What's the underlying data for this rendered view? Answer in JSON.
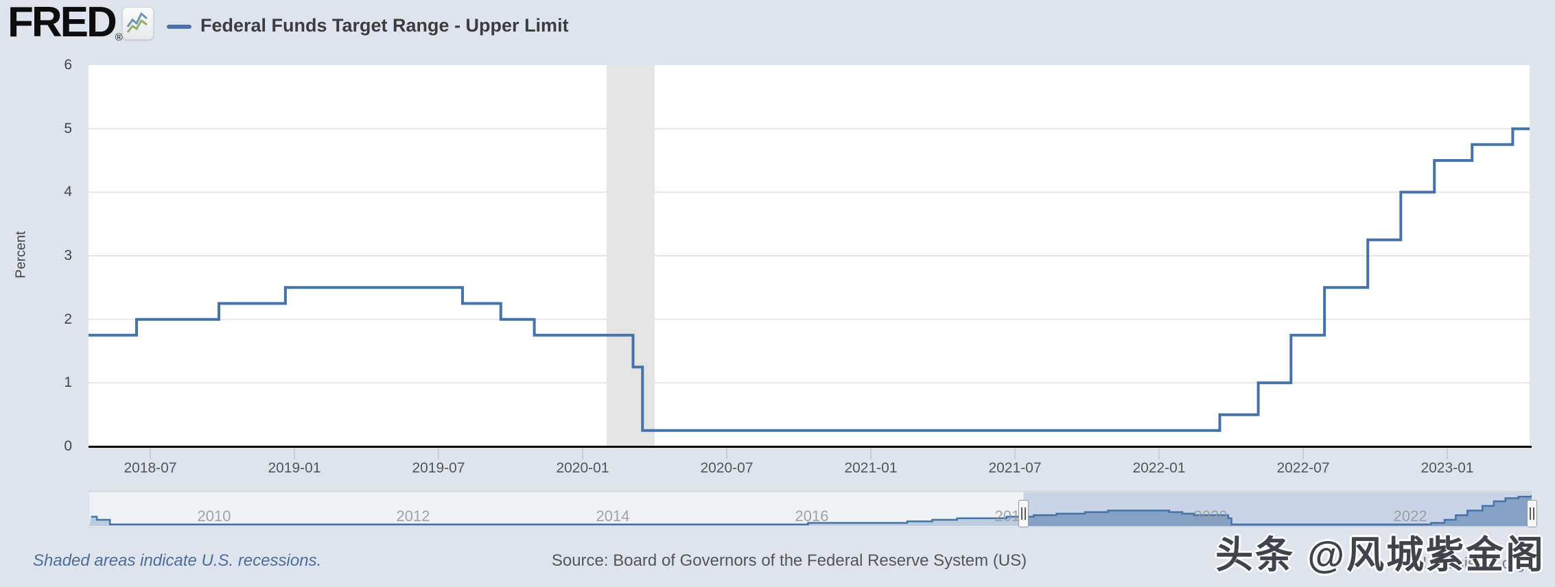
{
  "header": {
    "logo": "FRED",
    "registered": "®",
    "logo_icon": "fred-graph-icon",
    "legend_label": "Federal Funds Target Range - Upper Limit"
  },
  "chart_data": {
    "type": "line",
    "step": true,
    "title": "Federal Funds Target Range - Upper Limit",
    "ylabel": "Percent",
    "ylim": [
      0,
      6
    ],
    "yticks": [
      6,
      5,
      4,
      3,
      2,
      1,
      0
    ],
    "x_range": [
      "2018-04-14",
      "2023-04-14"
    ],
    "xticks": [
      "2018-07",
      "2019-01",
      "2019-07",
      "2020-01",
      "2020-07",
      "2021-01",
      "2021-07",
      "2022-01",
      "2022-07",
      "2023-01"
    ],
    "grid": "horizontal",
    "legend_position": "top-left",
    "series": [
      {
        "name": "Federal Funds Target Range - Upper Limit",
        "color": "#4572a7",
        "points": [
          [
            "2018-04-14",
            1.75
          ],
          [
            "2018-06-14",
            2.0
          ],
          [
            "2018-09-27",
            2.25
          ],
          [
            "2018-12-20",
            2.5
          ],
          [
            "2019-08-01",
            2.25
          ],
          [
            "2019-09-19",
            2.0
          ],
          [
            "2019-10-31",
            1.75
          ],
          [
            "2020-03-04",
            1.25
          ],
          [
            "2020-03-16",
            0.25
          ],
          [
            "2022-03-17",
            0.5
          ],
          [
            "2022-05-05",
            1.0
          ],
          [
            "2022-06-16",
            1.75
          ],
          [
            "2022-07-28",
            2.5
          ],
          [
            "2022-09-22",
            3.25
          ],
          [
            "2022-11-03",
            4.0
          ],
          [
            "2022-12-15",
            4.5
          ],
          [
            "2023-02-02",
            4.75
          ],
          [
            "2023-03-23",
            5.0
          ]
        ]
      }
    ],
    "recessions": [
      [
        "2020-02-01",
        "2020-04-01"
      ]
    ],
    "recession_color": "#e4e4e4",
    "gridline_color": "#e6e6e6"
  },
  "navigator": {
    "x_range": [
      "2008-10-01",
      "2023-03-20"
    ],
    "ylim": [
      0,
      5.45
    ],
    "xticks": [
      "2010",
      "2012",
      "2014",
      "2016",
      "2018",
      "2020",
      "2022"
    ],
    "selection": [
      "2018-02-15",
      "2023-03-20"
    ],
    "colors": {
      "outside_bg": "#eff2f5",
      "selection_bg": "#c9d4e9",
      "area_fill": "rgba(69,114,167,0.30)",
      "line": "#4572a7"
    },
    "points": [
      [
        "2008-10-08",
        1.5
      ],
      [
        "2008-10-29",
        1.0
      ],
      [
        "2008-12-16",
        0.25
      ],
      [
        "2015-12-17",
        0.5
      ],
      [
        "2016-12-15",
        0.75
      ],
      [
        "2017-03-16",
        1.0
      ],
      [
        "2017-06-15",
        1.25
      ],
      [
        "2017-12-14",
        1.5
      ],
      [
        "2018-03-22",
        1.75
      ],
      [
        "2018-06-14",
        2.0
      ],
      [
        "2018-09-27",
        2.25
      ],
      [
        "2018-12-20",
        2.5
      ],
      [
        "2019-08-01",
        2.25
      ],
      [
        "2019-09-19",
        2.0
      ],
      [
        "2019-10-31",
        1.75
      ],
      [
        "2020-03-04",
        1.25
      ],
      [
        "2020-03-16",
        0.25
      ],
      [
        "2022-03-17",
        0.5
      ],
      [
        "2022-05-05",
        1.0
      ],
      [
        "2022-06-16",
        1.75
      ],
      [
        "2022-07-28",
        2.5
      ],
      [
        "2022-09-22",
        3.25
      ],
      [
        "2022-11-03",
        4.0
      ],
      [
        "2022-12-15",
        4.5
      ],
      [
        "2023-02-02",
        4.75
      ],
      [
        "2023-03-23",
        5.0
      ]
    ]
  },
  "footer": {
    "note": "Shaded areas indicate U.S. recessions.",
    "source": "Source: Board of Governors of the Federal Reserve System (US)",
    "url": "fred.stlouisfed.org"
  },
  "watermark": "头条 @风城紫金阁"
}
